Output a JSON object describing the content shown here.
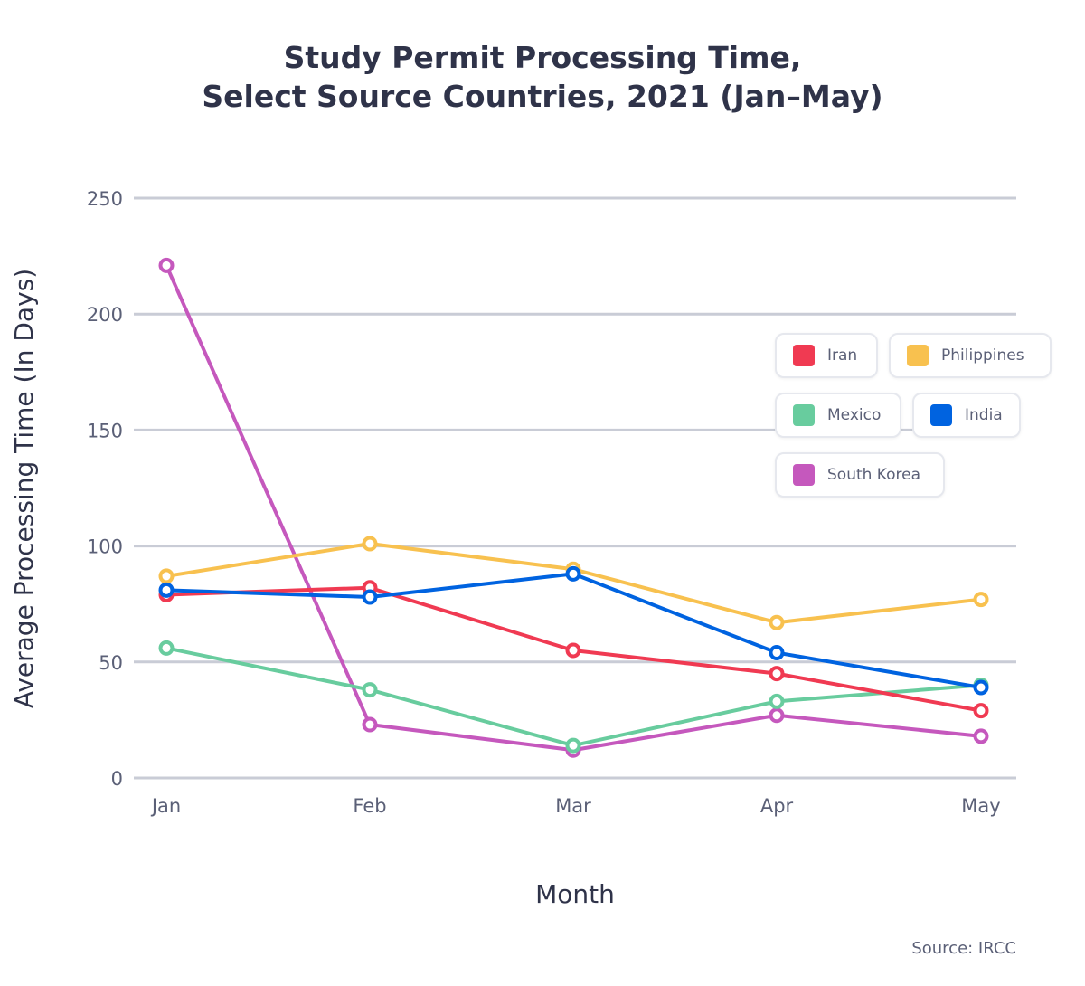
{
  "chart_data": {
    "type": "line",
    "title": [
      "Study Permit Processing Time,",
      "Select Source Countries, 2021 (Jan–May)"
    ],
    "xlabel": "Month",
    "ylabel": "Average Processing Time (In Days)",
    "categories": [
      "Jan",
      "Feb",
      "Mar",
      "Apr",
      "May"
    ],
    "ylim": [
      0,
      250
    ],
    "yticks": [
      0,
      50,
      100,
      150,
      200,
      250
    ],
    "grid": true,
    "legend_position": "right",
    "series": [
      {
        "name": "Iran",
        "color": "#f03a52",
        "values": [
          79,
          82,
          55,
          45,
          29
        ]
      },
      {
        "name": "Philippines",
        "color": "#f8c14f",
        "values": [
          87,
          101,
          90,
          67,
          77
        ]
      },
      {
        "name": "Mexico",
        "color": "#68cc9e",
        "values": [
          56,
          38,
          14,
          33,
          40
        ]
      },
      {
        "name": "India",
        "color": "#0063e0",
        "values": [
          81,
          78,
          88,
          54,
          39
        ]
      },
      {
        "name": "South Korea",
        "color": "#c558bd",
        "values": [
          221,
          23,
          12,
          27,
          18
        ]
      }
    ],
    "source": "Source: IRCC"
  }
}
